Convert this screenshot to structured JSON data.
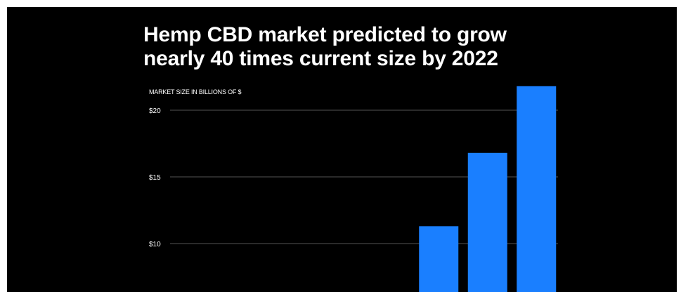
{
  "colors": {
    "background": "#000000",
    "text": "#ffffff",
    "bar": "#1a7fff",
    "grid": "#555555"
  },
  "chart_data": {
    "type": "bar",
    "title_lines": [
      "Hemp CBD market predicted to grow",
      "nearly 40 times current size by 2022"
    ],
    "ylabel": "MARKET SIZE IN BILLIONS OF $",
    "xlabel": "",
    "yticks": [
      {
        "value": 20,
        "label": "$20"
      },
      {
        "value": 15,
        "label": "$15"
      },
      {
        "value": 10,
        "label": "$10"
      }
    ],
    "ylim": [
      0,
      22
    ],
    "grid": true,
    "legend": "none",
    "bars": [
      {
        "slot": 5,
        "value": 11.3
      },
      {
        "slot": 6,
        "value": 16.8
      },
      {
        "slot": 7,
        "value": 21.8
      }
    ],
    "slot_count": 8
  }
}
